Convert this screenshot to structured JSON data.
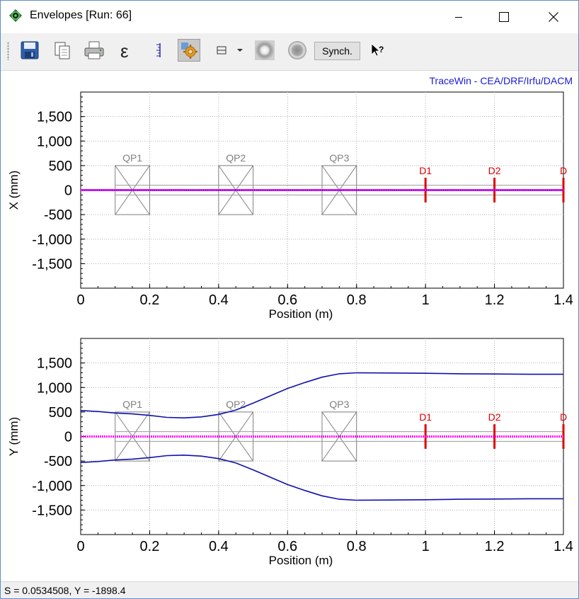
{
  "window": {
    "title": "Envelopes [Run: 66]",
    "minimize_icon": "minimize-icon",
    "maximize_icon": "maximize-icon",
    "close_icon": "close-icon"
  },
  "toolbar": {
    "items": [
      "save-icon",
      "copy-icon",
      "print-icon",
      "epsilon-icon",
      "scale-icon",
      "settings-icon",
      "layout-icon",
      "dropdown-arrow-icon",
      "beam-spot-icon",
      "circle-icon",
      "whats-this-icon"
    ],
    "synch_label": "Synch."
  },
  "credit": "TraceWin - CEA/DRF/Irfu/DACM",
  "status": "S = 0.0534508, Y = -1898.4",
  "colors": {
    "envelope": "#1010b0",
    "center_line": "#ff00ff",
    "diagnostic": "#e00000",
    "element": "#808080",
    "credit": "#1a1ad8"
  },
  "chart_data": [
    {
      "type": "line",
      "ylabel": "X (mm)",
      "xlabel": "Position (m)",
      "xlim": [
        0,
        1.4
      ],
      "ylim": [
        -2000,
        2000
      ],
      "xticks": [
        "0",
        "0.2",
        "0.4",
        "0.6",
        "0.8",
        "1",
        "1.2",
        "1.4"
      ],
      "yticks": [
        "1,500",
        "1,000",
        "500",
        "0",
        "-500",
        "-1,000",
        "-1,500"
      ],
      "grid": true,
      "elements": [
        {
          "label": "QP1",
          "x_start": 0.1,
          "x_end": 0.2,
          "half_height": 500
        },
        {
          "label": "QP2",
          "x_start": 0.4,
          "x_end": 0.5,
          "half_height": 500
        },
        {
          "label": "QP3",
          "x_start": 0.7,
          "x_end": 0.8,
          "half_height": 500
        }
      ],
      "diagnostics": [
        {
          "label": "D1",
          "x": 1.0
        },
        {
          "label": "D2",
          "x": 1.2
        },
        {
          "label": "D",
          "x": 1.4
        }
      ],
      "series": [
        {
          "values": [
            [
              0,
              5
            ],
            [
              1.4,
              5
            ]
          ]
        },
        {
          "values": [
            [
              0,
              -5
            ],
            [
              1.4,
              -5
            ]
          ]
        }
      ]
    },
    {
      "type": "line",
      "ylabel": "Y (mm)",
      "xlabel": "Position (m)",
      "xlim": [
        0,
        1.4
      ],
      "ylim": [
        -2000,
        2000
      ],
      "xticks": [
        "0",
        "0.2",
        "0.4",
        "0.6",
        "0.8",
        "1",
        "1.2",
        "1.4"
      ],
      "yticks": [
        "1,500",
        "1,000",
        "500",
        "0",
        "-500",
        "-1,000",
        "-1,500"
      ],
      "grid": true,
      "elements": [
        {
          "label": "QP1",
          "x_start": 0.1,
          "x_end": 0.2,
          "half_height": 500
        },
        {
          "label": "QP2",
          "x_start": 0.4,
          "x_end": 0.5,
          "half_height": 500
        },
        {
          "label": "QP3",
          "x_start": 0.7,
          "x_end": 0.8,
          "half_height": 500
        }
      ],
      "diagnostics": [
        {
          "label": "D1",
          "x": 1.0
        },
        {
          "label": "D2",
          "x": 1.2
        },
        {
          "label": "D",
          "x": 1.4
        }
      ],
      "series": [
        {
          "values": [
            [
              0,
              530
            ],
            [
              0.05,
              510
            ],
            [
              0.1,
              480
            ],
            [
              0.15,
              460
            ],
            [
              0.2,
              430
            ],
            [
              0.25,
              390
            ],
            [
              0.3,
              380
            ],
            [
              0.35,
              400
            ],
            [
              0.4,
              450
            ],
            [
              0.45,
              540
            ],
            [
              0.5,
              680
            ],
            [
              0.55,
              830
            ],
            [
              0.6,
              980
            ],
            [
              0.65,
              1100
            ],
            [
              0.7,
              1210
            ],
            [
              0.75,
              1280
            ],
            [
              0.8,
              1300
            ],
            [
              0.9,
              1295
            ],
            [
              1.0,
              1290
            ],
            [
              1.1,
              1280
            ],
            [
              1.2,
              1275
            ],
            [
              1.3,
              1270
            ],
            [
              1.4,
              1270
            ]
          ]
        },
        {
          "values": [
            [
              0,
              -530
            ],
            [
              0.05,
              -510
            ],
            [
              0.1,
              -480
            ],
            [
              0.15,
              -460
            ],
            [
              0.2,
              -430
            ],
            [
              0.25,
              -390
            ],
            [
              0.3,
              -380
            ],
            [
              0.35,
              -400
            ],
            [
              0.4,
              -450
            ],
            [
              0.45,
              -540
            ],
            [
              0.5,
              -680
            ],
            [
              0.55,
              -830
            ],
            [
              0.6,
              -980
            ],
            [
              0.65,
              -1100
            ],
            [
              0.7,
              -1210
            ],
            [
              0.75,
              -1280
            ],
            [
              0.8,
              -1300
            ],
            [
              0.9,
              -1295
            ],
            [
              1.0,
              -1290
            ],
            [
              1.1,
              -1280
            ],
            [
              1.2,
              -1275
            ],
            [
              1.3,
              -1270
            ],
            [
              1.4,
              -1270
            ]
          ]
        }
      ]
    }
  ]
}
